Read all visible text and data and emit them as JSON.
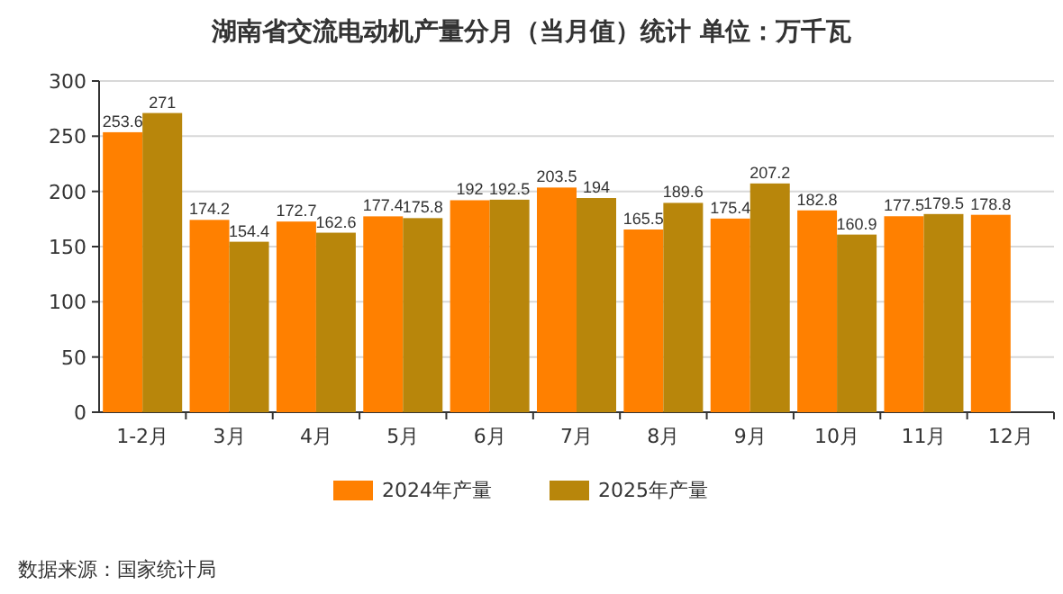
{
  "chart_data": {
    "type": "bar",
    "title": "湖南省交流电动机产量分月（当月值）统计 单位：万千瓦",
    "categories": [
      "1-2月",
      "3月",
      "4月",
      "5月",
      "6月",
      "7月",
      "8月",
      "9月",
      "10月",
      "11月",
      "12月"
    ],
    "series": [
      {
        "name": "2024年产量",
        "color": "#ff8000",
        "values": [
          253.6,
          174.2,
          172.7,
          177.4,
          192,
          203.5,
          165.5,
          175.4,
          182.8,
          177.5,
          178.8
        ]
      },
      {
        "name": "2025年产量",
        "color": "#b8860b",
        "values": [
          271,
          154.4,
          162.6,
          175.8,
          192.5,
          194,
          189.6,
          207.2,
          160.9,
          179.5,
          null
        ]
      }
    ],
    "ylim": [
      0,
      300
    ],
    "yticks": [
      0,
      50,
      100,
      150,
      200,
      250,
      300
    ],
    "grid": "y",
    "legend": "bottom",
    "data_labels": true,
    "annotations": [
      "数据来源：国家统计局"
    ]
  }
}
